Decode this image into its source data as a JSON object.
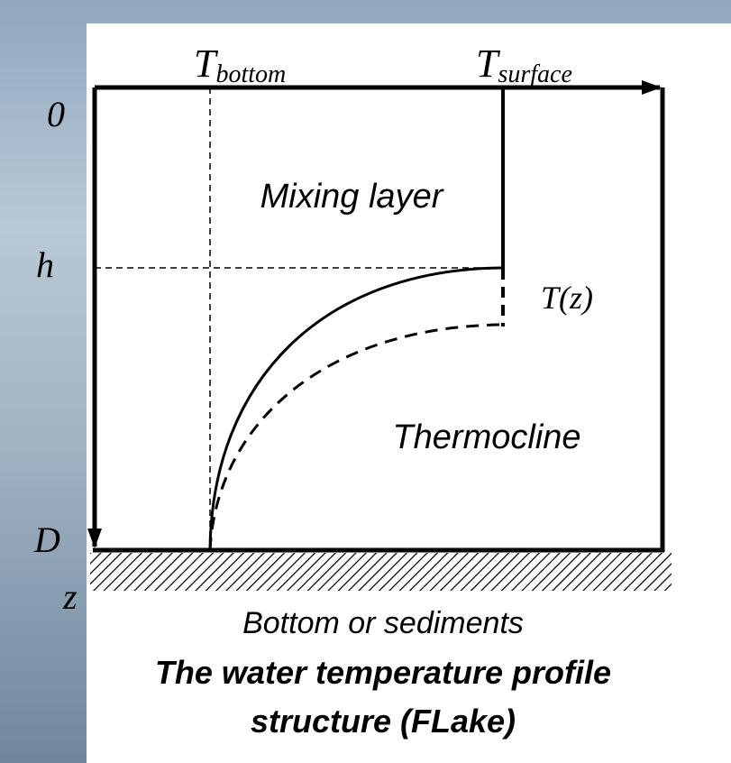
{
  "axes": {
    "t_bottom": {
      "symbol": "T",
      "subscript": "bottom"
    },
    "t_surface": {
      "symbol": "T",
      "subscript": "surface"
    },
    "depth_labels": [
      "0",
      "h",
      "D"
    ],
    "depth_axis": "z"
  },
  "regions": {
    "mixing_layer": "Mixing layer",
    "profile": "T(z)",
    "thermocline": "Thermocline",
    "bottom": "Bottom or sediments"
  },
  "caption": [
    "The water temperature profile",
    "structure (FLake)"
  ]
}
